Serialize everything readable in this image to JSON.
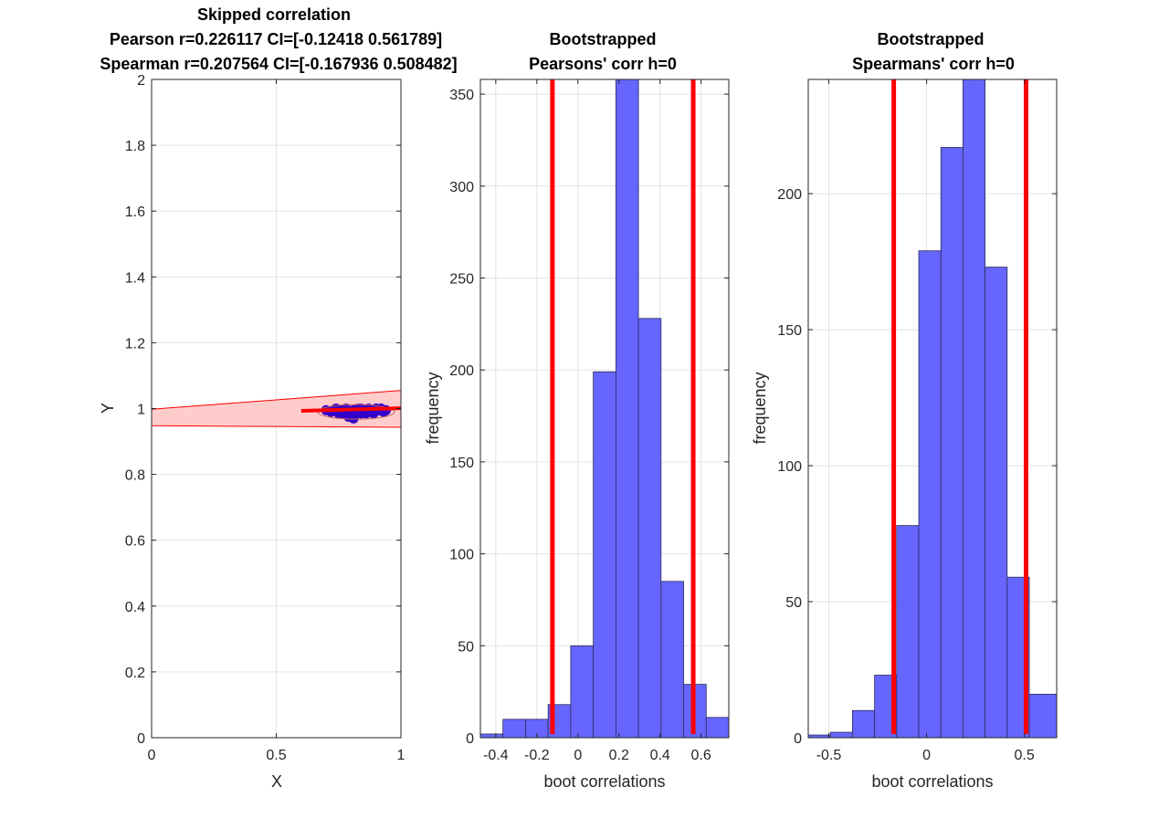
{
  "colors": {
    "bar_fill": "#6666ff",
    "bar_edge": "#2b2b5a",
    "ci_line": "#ff0000",
    "band_fill": "#ffcccc",
    "band_edge": "#ff0000",
    "points": "#3300cc",
    "grid": "#e3e3e3",
    "axis": "#262626"
  },
  "chart_data": [
    {
      "type": "scatter",
      "title": [
        "Skipped correlation",
        "Pearson r=0.226117 CI=[-0.12418 0.561789]",
        "Spearman r=0.207564 CI=[-0.167936 0.508482]"
      ],
      "xlabel": "X",
      "ylabel": "Y",
      "xlim": [
        0,
        1
      ],
      "ylim": [
        0,
        2
      ],
      "xticks": [
        0,
        0.5,
        1
      ],
      "xtick_labels": [
        "0",
        "0.5",
        "1"
      ],
      "yticks": [
        0,
        0.2,
        0.4,
        0.6,
        0.8,
        1,
        1.2,
        1.4,
        1.6,
        1.8,
        2
      ],
      "ytick_labels": [
        "0",
        "0.2",
        "0.4",
        "0.6",
        "0.8",
        "1",
        "1.2",
        "1.4",
        "1.6",
        "1.8",
        "2"
      ],
      "grid": true,
      "regression_line": {
        "x": [
          0.6,
          1.0
        ],
        "y": [
          0.993,
          1.001
        ]
      },
      "ci_band": {
        "x": [
          0,
          1
        ],
        "upper": [
          0.998,
          1.055
        ],
        "lower": [
          0.948,
          0.943
        ]
      },
      "points": {
        "x": [
          0.7,
          0.72,
          0.74,
          0.75,
          0.76,
          0.78,
          0.79,
          0.8,
          0.81,
          0.82,
          0.83,
          0.84,
          0.85,
          0.86,
          0.87,
          0.88,
          0.89,
          0.9,
          0.91,
          0.92,
          0.93,
          0.94,
          0.73,
          0.77,
          0.81,
          0.84,
          0.88,
          0.91,
          0.79,
          0.86
        ],
        "y": [
          0.995,
          0.99,
          1.0,
          0.985,
          0.995,
          1.0,
          0.99,
          0.985,
          0.97,
          0.995,
          1.0,
          0.985,
          0.995,
          0.99,
          1.0,
          0.995,
          0.985,
          1.0,
          0.995,
          1.0,
          0.99,
          0.995,
          0.995,
          0.985,
          0.995,
          1.0,
          0.99,
          0.995,
          0.975,
          0.985
        ]
      }
    },
    {
      "type": "bar",
      "title": [
        "Bootstrapped",
        "Pearsons' corr h=0"
      ],
      "xlabel": "boot correlations",
      "ylabel": "frequency",
      "xlim": [
        -0.475,
        0.735
      ],
      "ylim": [
        0,
        358
      ],
      "xticks": [
        -0.4,
        -0.2,
        0,
        0.2,
        0.4,
        0.6
      ],
      "xtick_labels": [
        "-0.4",
        "-0.2",
        "0",
        "0.2",
        "0.4",
        "0.6"
      ],
      "yticks": [
        0,
        50,
        100,
        150,
        200,
        250,
        300,
        350
      ],
      "ytick_labels": [
        "0",
        "50",
        "100",
        "150",
        "200",
        "250",
        "300",
        "350"
      ],
      "grid": true,
      "bin_edges": [
        -0.475,
        -0.365,
        -0.255,
        -0.145,
        -0.035,
        0.075,
        0.185,
        0.295,
        0.405,
        0.515,
        0.625,
        0.735
      ],
      "values": [
        2,
        10,
        10,
        18,
        50,
        199,
        358,
        228,
        85,
        29,
        11
      ],
      "ci_lines": [
        -0.12418,
        0.561789
      ]
    },
    {
      "type": "bar",
      "title": [
        "Bootstrapped",
        "Spearmans' corr h=0"
      ],
      "xlabel": "boot correlations",
      "ylabel": "frequency",
      "xlim": [
        -0.605,
        0.665
      ],
      "ylim": [
        0,
        242
      ],
      "xticks": [
        -0.5,
        0,
        0.5
      ],
      "xtick_labels": [
        "-0.5",
        "0",
        "0.5"
      ],
      "yticks": [
        0,
        50,
        100,
        150,
        200
      ],
      "ytick_labels": [
        "0",
        "50",
        "100",
        "150",
        "200"
      ],
      "grid": true,
      "bin_edges": [
        -0.605,
        -0.492,
        -0.379,
        -0.266,
        -0.153,
        -0.04,
        0.073,
        0.186,
        0.299,
        0.412,
        0.525,
        0.665
      ],
      "values": [
        1,
        2,
        10,
        23,
        78,
        179,
        217,
        242,
        173,
        59,
        16
      ],
      "ci_lines": [
        -0.167936,
        0.508482
      ]
    }
  ]
}
